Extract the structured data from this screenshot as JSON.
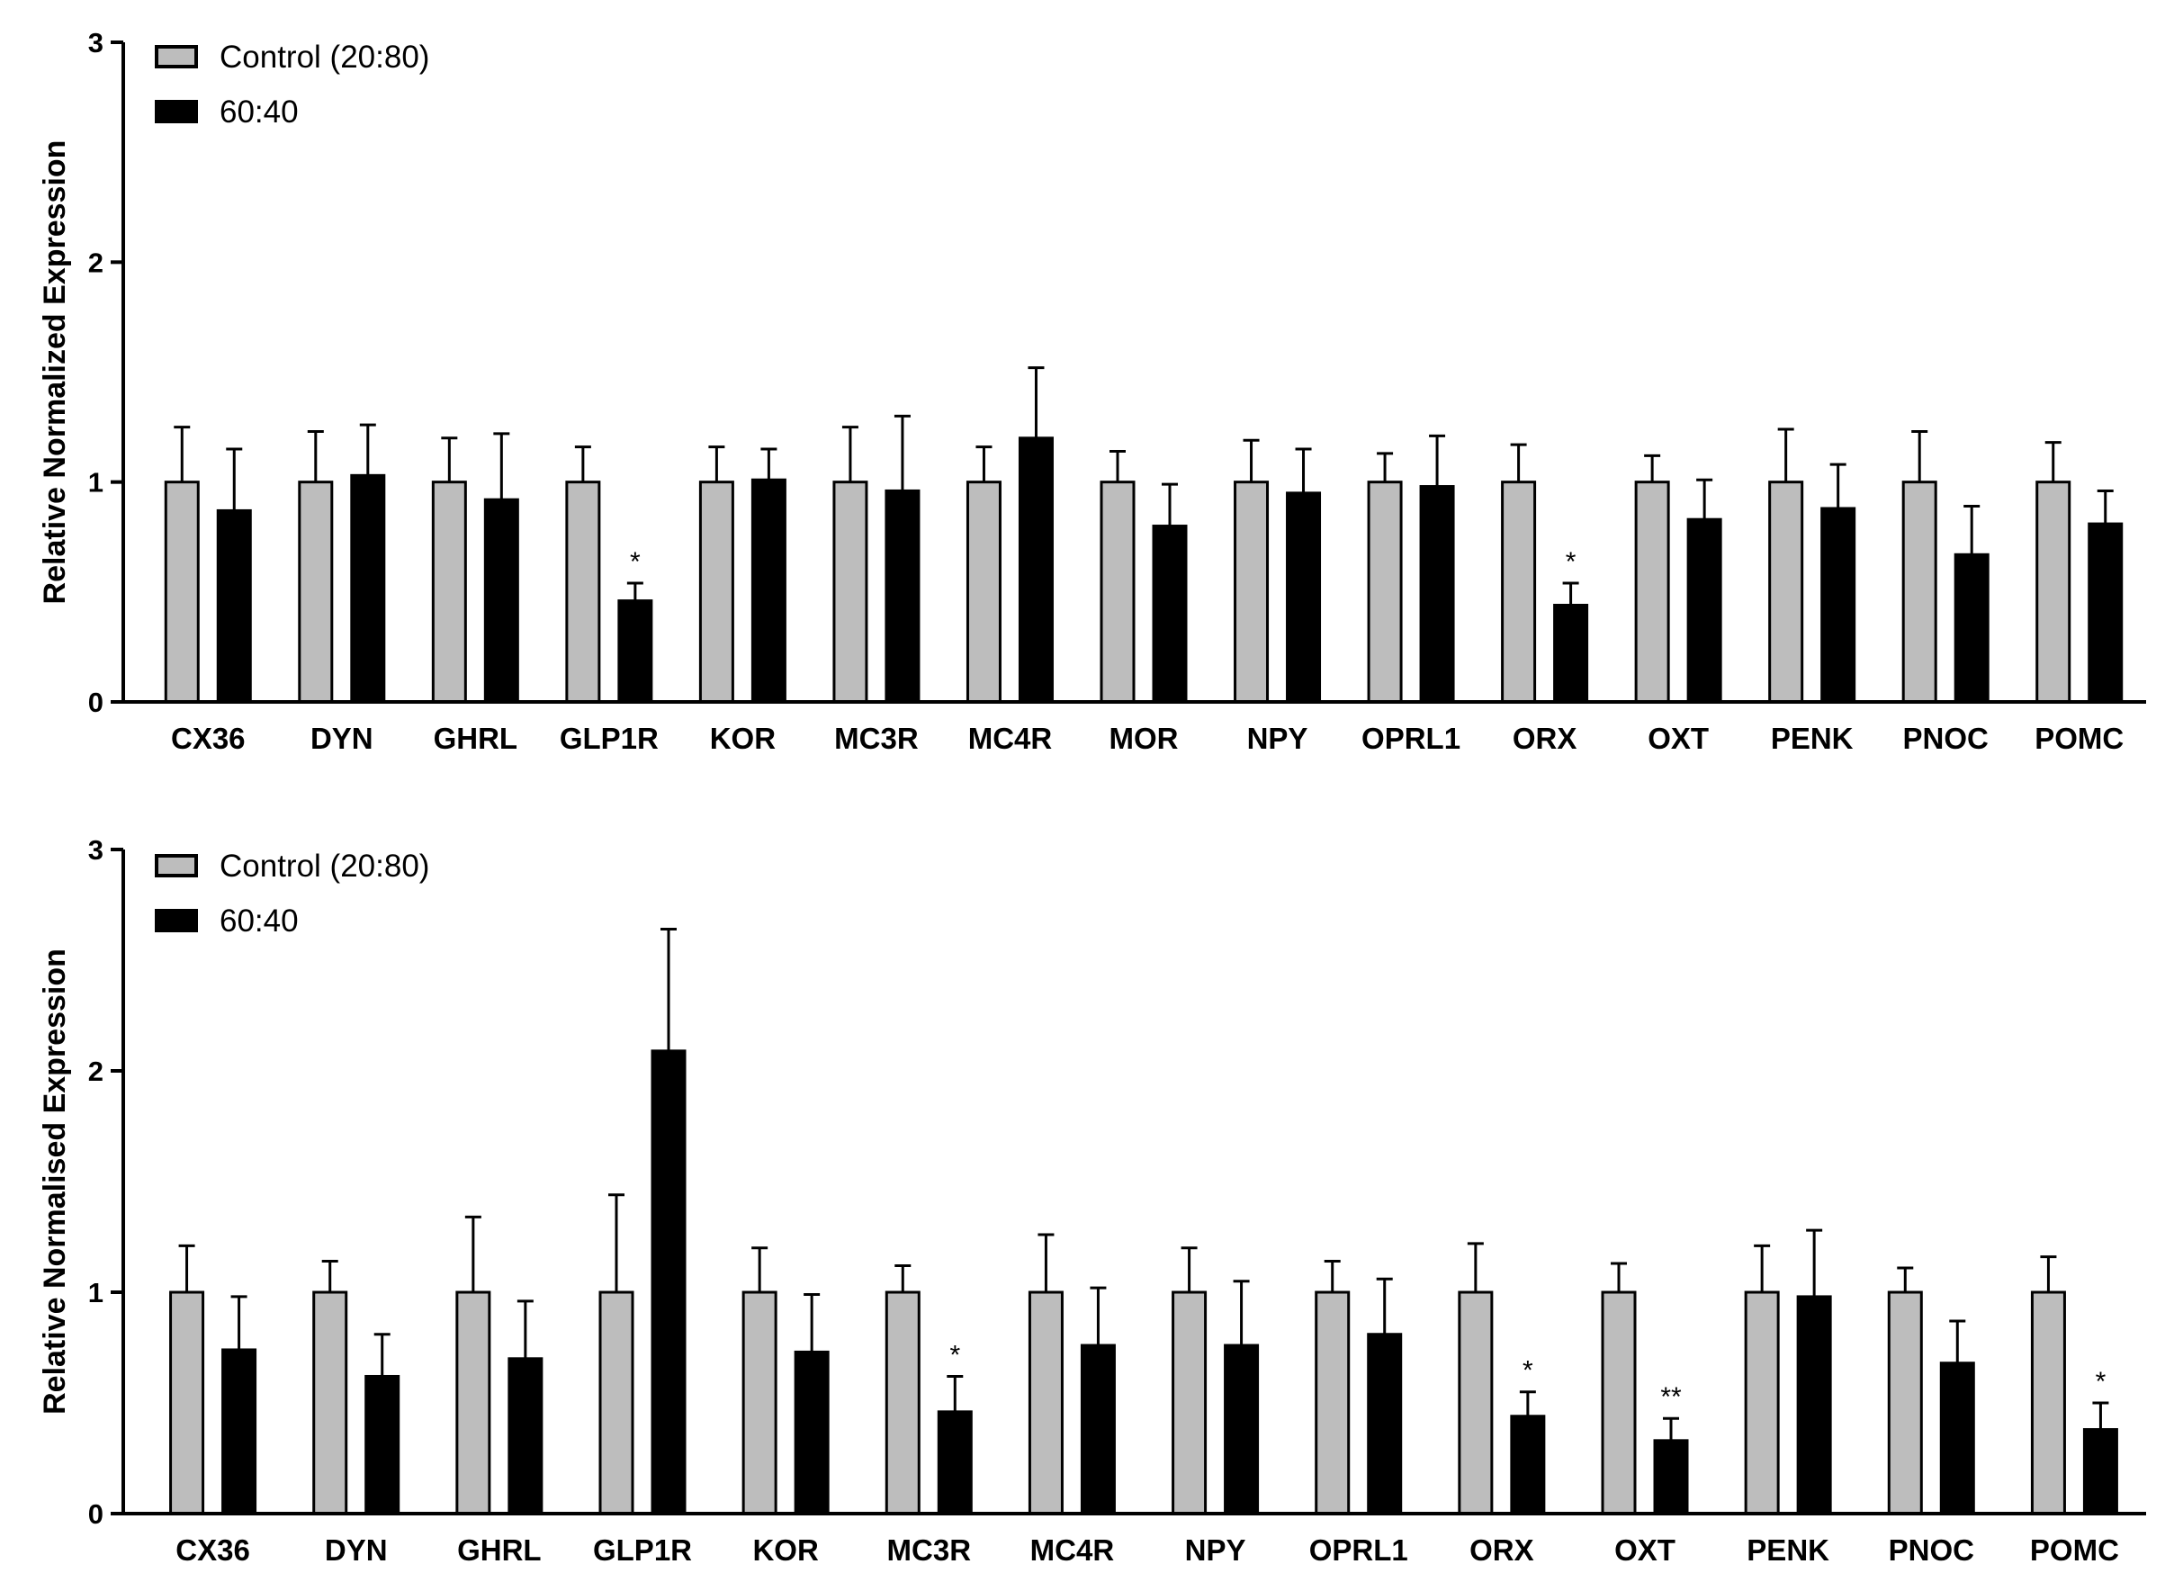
{
  "chart_data": [
    {
      "type": "bar",
      "ylabel": "Relative Normalized Expression",
      "ylim": [
        0,
        3
      ],
      "yticks": [
        "0",
        "1",
        "2",
        "3"
      ],
      "legend": {
        "position": "top-left"
      },
      "categories": [
        "CX36",
        "DYN",
        "GHRL",
        "GLP1R",
        "KOR",
        "MC3R",
        "MC4R",
        "MOR",
        "NPY",
        "OPRL1",
        "ORX",
        "OXT",
        "PENK",
        "PNOC",
        "POMC"
      ],
      "series": [
        {
          "name": "Control (20:80)",
          "color": "#bdbdbd",
          "values": [
            1,
            1,
            1,
            1,
            1,
            1,
            1,
            1,
            1,
            1,
            1,
            1,
            1,
            1,
            1
          ],
          "error": [
            0.25,
            0.23,
            0.2,
            0.16,
            0.16,
            0.25,
            0.16,
            0.14,
            0.19,
            0.13,
            0.17,
            0.12,
            0.24,
            0.23,
            0.18
          ]
        },
        {
          "name": "60:40",
          "color": "#000000",
          "values": [
            0.87,
            1.03,
            0.92,
            0.46,
            1.01,
            0.96,
            1.2,
            0.8,
            0.95,
            0.98,
            0.44,
            0.83,
            0.88,
            0.67,
            0.81
          ],
          "error": [
            0.28,
            0.23,
            0.3,
            0.08,
            0.14,
            0.34,
            0.32,
            0.19,
            0.2,
            0.23,
            0.1,
            0.18,
            0.2,
            0.22,
            0.15
          ]
        }
      ],
      "significance": [
        {
          "category": "GLP1R",
          "label": "*"
        },
        {
          "category": "ORX",
          "label": "*"
        }
      ]
    },
    {
      "type": "bar",
      "ylabel": "Relative Normalised Expression",
      "ylim": [
        0,
        3
      ],
      "yticks": [
        "0",
        "1",
        "2",
        "3"
      ],
      "legend": {
        "position": "top-left"
      },
      "categories": [
        "CX36",
        "DYN",
        "GHRL",
        "GLP1R",
        "KOR",
        "MC3R",
        "MC4R",
        "NPY",
        "OPRL1",
        "ORX",
        "OXT",
        "PENK",
        "PNOC",
        "POMC"
      ],
      "series": [
        {
          "name": "Control (20:80)",
          "color": "#bdbdbd",
          "values": [
            1,
            1,
            1,
            1,
            1,
            1,
            1,
            1,
            1,
            1,
            1,
            1,
            1,
            1
          ],
          "error": [
            0.21,
            0.14,
            0.34,
            0.44,
            0.2,
            0.12,
            0.26,
            0.2,
            0.14,
            0.22,
            0.13,
            0.21,
            0.11,
            0.16
          ]
        },
        {
          "name": "60:40",
          "color": "#000000",
          "values": [
            0.74,
            0.62,
            0.7,
            2.09,
            0.73,
            0.46,
            0.76,
            0.76,
            0.81,
            0.44,
            0.33,
            0.98,
            0.68,
            0.38
          ],
          "error": [
            0.24,
            0.19,
            0.26,
            0.55,
            0.26,
            0.16,
            0.26,
            0.29,
            0.25,
            0.11,
            0.1,
            0.3,
            0.19,
            0.12
          ]
        }
      ],
      "significance": [
        {
          "category": "MC3R",
          "label": "*"
        },
        {
          "category": "ORX",
          "label": "*"
        },
        {
          "category": "OXT",
          "label": "**"
        },
        {
          "category": "POMC",
          "label": "*"
        }
      ]
    }
  ]
}
